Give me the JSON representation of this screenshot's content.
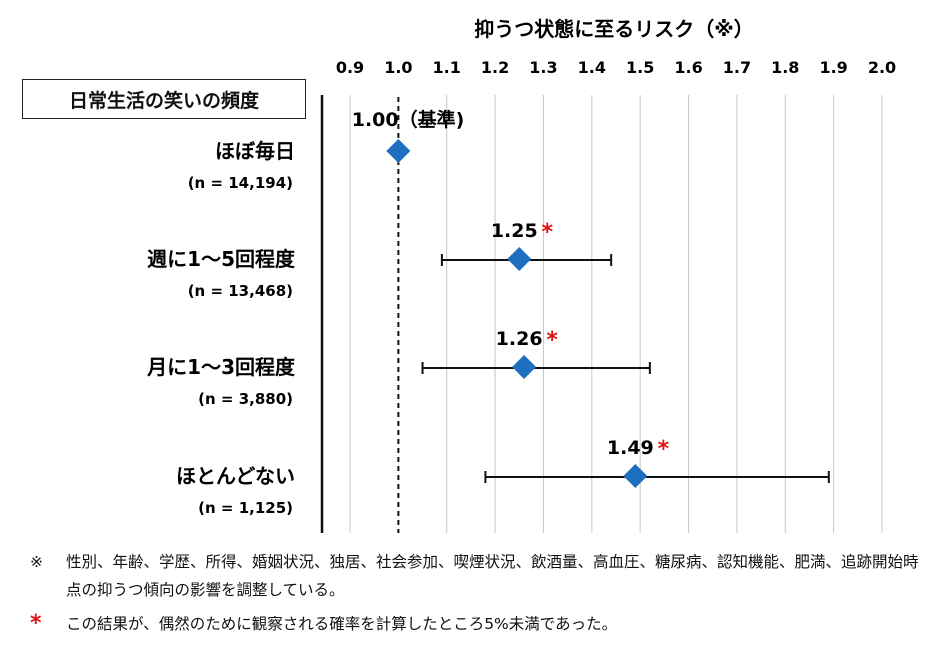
{
  "chart_data": {
    "type": "forest",
    "title": "抑うつ状態に至るリスク（※）",
    "group_label": "日常生活の笑いの頻度",
    "xlim": [
      0.9,
      2.0
    ],
    "ticks": [
      "0.9",
      "1.0",
      "1.1",
      "1.2",
      "1.3",
      "1.4",
      "1.5",
      "1.6",
      "1.7",
      "1.8",
      "1.9",
      "2.0"
    ],
    "reference": 1.0,
    "reference_label": "1.00（基準)",
    "grid": true,
    "rows": [
      {
        "label": "ほぼ毎日",
        "n": "(n = 14,194)",
        "value": 1.0,
        "value_label": "",
        "ci": null,
        "significant": false
      },
      {
        "label": "週に1～5回程度",
        "n": "(n = 13,468)",
        "value": 1.25,
        "value_label": "1.25",
        "ci": [
          1.09,
          1.44
        ],
        "significant": true
      },
      {
        "label": "月に1～3回程度",
        "n": "(n = 3,880)",
        "value": 1.26,
        "value_label": "1.26",
        "ci": [
          1.05,
          1.52
        ],
        "significant": true
      },
      {
        "label": "ほとんどない",
        "n": "(n = 1,125)",
        "value": 1.49,
        "value_label": "1.49",
        "ci": [
          1.18,
          1.89
        ],
        "significant": true
      }
    ],
    "significance_mark": "*",
    "marker_color": "#1f6fc0"
  },
  "notes": [
    {
      "mark": "※",
      "text": "性別、年齢、学歴、所得、婚姻状況、独居、社会参加、喫煙状況、飲酒量、高血圧、糖尿病、認知機能、肥満、追跡開始時点の抑うつ傾向の影響を調整している。"
    },
    {
      "mark": "*",
      "text": "この結果が、偶然のために観察される確率を計算したところ5%未満であった。"
    }
  ]
}
